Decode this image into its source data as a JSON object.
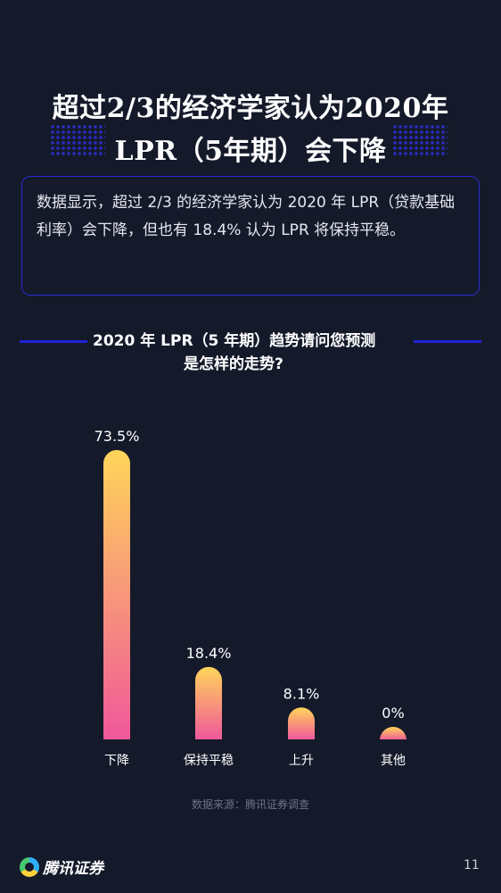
{
  "title": {
    "line1": "超过2/3的经济学家认为2020年",
    "line2": "LPR（5年期）会下降"
  },
  "summary": "数据显示，超过 2/3 的经济学家认为 2020 年 LPR（贷款基础利率）会下降，但也有 18.4% 认为 LPR 将保持平稳。",
  "question": {
    "line1": "2020 年 LPR（5 年期）趋势请问您预测",
    "line2": "是怎样的走势?"
  },
  "chart_data": {
    "type": "bar",
    "title": "2020 年 LPR（5 年期）趋势请问您预测是怎样的走势?",
    "categories": [
      "下降",
      "保持平稳",
      "上升",
      "其他"
    ],
    "values": [
      73.5,
      18.4,
      8.1,
      0
    ],
    "value_labels": [
      "73.5%",
      "18.4%",
      "8.1%",
      "0%"
    ],
    "unit": "%",
    "ylim": [
      0,
      73.5
    ],
    "grid": false,
    "gradient": [
      "#ffd55a",
      "#f0589a"
    ]
  },
  "source": "数据来源：腾讯证券调查",
  "brand": "腾讯证券",
  "page_number": "11"
}
